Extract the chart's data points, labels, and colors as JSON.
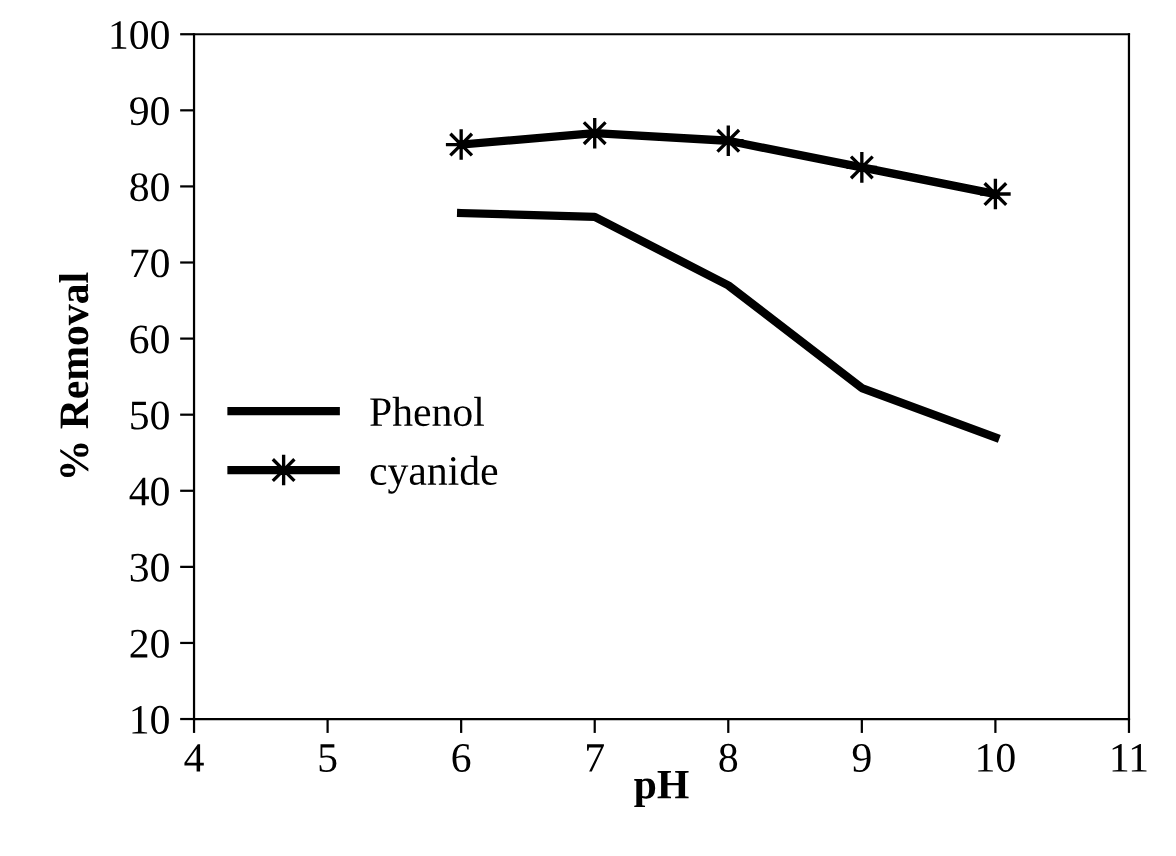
{
  "chart_data": {
    "type": "line",
    "xlabel": "pH",
    "ylabel": "% Removal",
    "x": [
      6,
      7,
      8,
      9,
      10
    ],
    "series": [
      {
        "name": "Phenol",
        "color": "#000000",
        "marker": "none",
        "values": [
          76.5,
          76,
          67,
          53.5,
          47
        ]
      },
      {
        "name": "cyanide",
        "color": "#000000",
        "marker": "star",
        "values": [
          85.5,
          87,
          86,
          82.5,
          79
        ]
      }
    ],
    "xlim": [
      4,
      11
    ],
    "xticks": [
      4,
      5,
      6,
      7,
      8,
      9,
      10,
      11
    ],
    "ylim": [
      10,
      100
    ],
    "yticks": [
      10,
      20,
      30,
      40,
      50,
      60,
      70,
      80,
      90,
      100
    ],
    "grid": false,
    "legend": "left",
    "line_style": "solid"
  }
}
